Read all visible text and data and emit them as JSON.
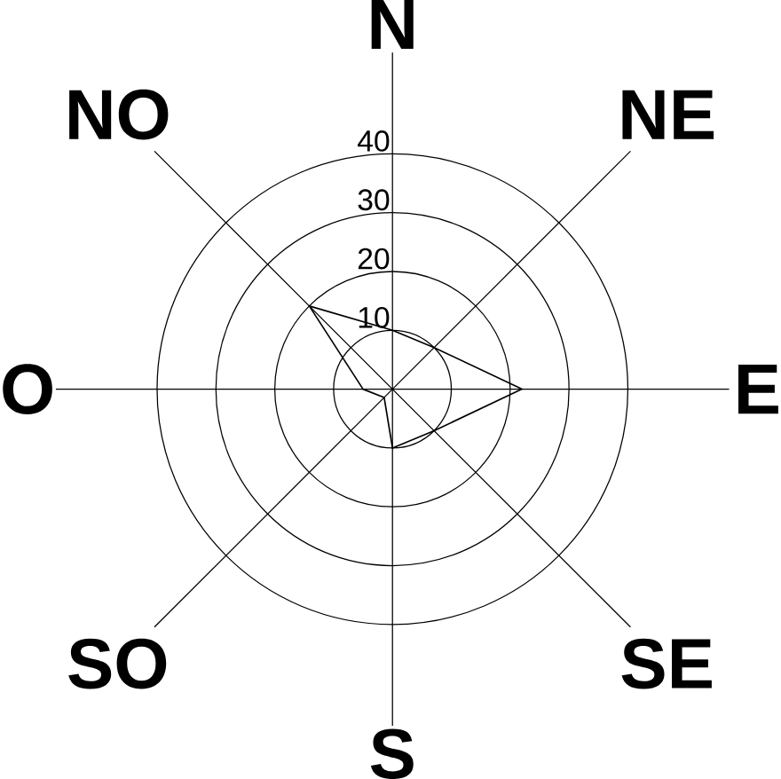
{
  "chart_data": {
    "type": "radar",
    "categories": [
      "N",
      "NE",
      "E",
      "SE",
      "S",
      "SO",
      "O",
      "NO"
    ],
    "series": [
      {
        "color": "#000000",
        "values": [
          10,
          10,
          22,
          10,
          10,
          2,
          5,
          20
        ]
      }
    ],
    "ylim": [
      0,
      40
    ],
    "yticks": [
      10,
      20,
      30,
      40
    ],
    "grid": true
  }
}
